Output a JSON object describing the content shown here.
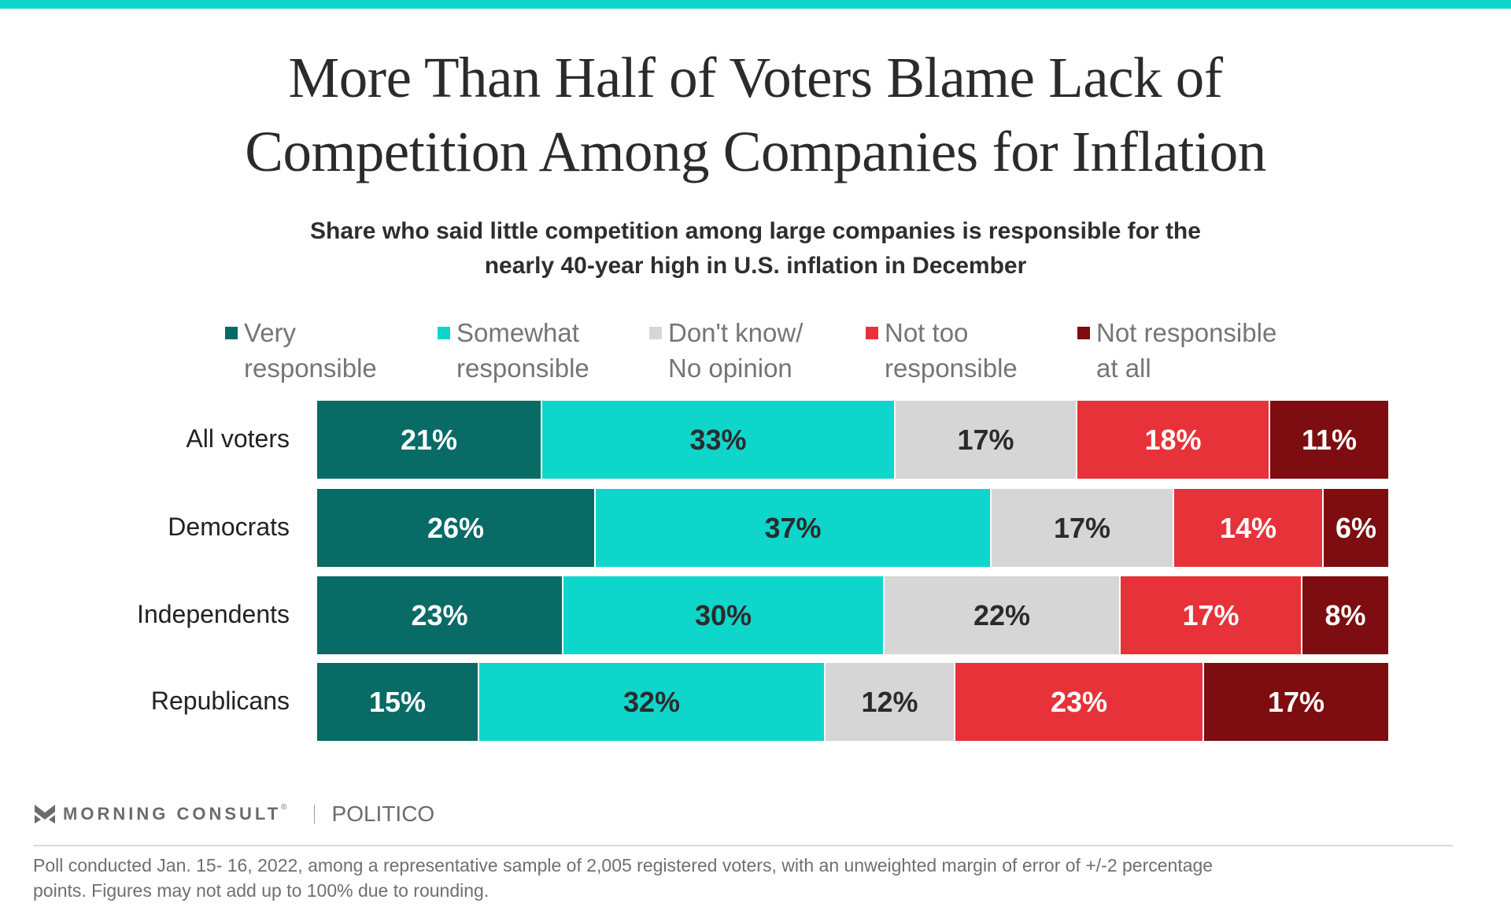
{
  "header": {
    "accent_color": "#0fd6cb",
    "title_line1": "More Than Half of Voters Blame Lack of",
    "title_line2": "Competition Among Companies for Inflation",
    "subtitle_line1": "Share who said little competition among large companies is responsible for the",
    "subtitle_line2": "nearly 40-year high in U.S. inflation in December"
  },
  "chart_data": {
    "type": "bar",
    "orientation": "horizontal",
    "stacked": true,
    "title": "More Than Half of Voters Blame Lack of Competition Among Companies for Inflation",
    "subtitle": "Share who said little competition among large companies is responsible for the nearly 40-year high in U.S. inflation in December",
    "xlabel": "",
    "ylabel": "",
    "xlim": [
      0,
      100
    ],
    "grid": false,
    "legend_position": "top",
    "categories": [
      "All voters",
      "Democrats",
      "Independents",
      "Republicans"
    ],
    "series": [
      {
        "name": "Very responsible",
        "legend_line1": "Very",
        "legend_line2": "responsible",
        "color": "#086b66",
        "label_color": "#ffffff",
        "values": [
          21,
          26,
          23,
          15
        ],
        "labels": [
          "21%",
          "26%",
          "23%",
          "15%"
        ]
      },
      {
        "name": "Somewhat responsible",
        "legend_line1": "Somewhat",
        "legend_line2": "responsible",
        "color": "#0fd6cb",
        "label_color": "#2b2b2b",
        "values": [
          33,
          37,
          30,
          32
        ],
        "labels": [
          "33%",
          "37%",
          "30%",
          "32%"
        ]
      },
      {
        "name": "Don't know/ No opinion",
        "legend_line1": "Don't know/",
        "legend_line2": "No opinion",
        "color": "#d6d6d6",
        "label_color": "#2b2b2b",
        "values": [
          17,
          17,
          22,
          12
        ],
        "labels": [
          "17%",
          "17%",
          "22%",
          "12%"
        ]
      },
      {
        "name": "Not too responsible",
        "legend_line1": "Not too",
        "legend_line2": "responsible",
        "color": "#e8323a",
        "label_color": "#ffffff",
        "values": [
          18,
          14,
          17,
          23
        ],
        "labels": [
          "18%",
          "14%",
          "17%",
          "23%"
        ]
      },
      {
        "name": "Not responsible at all",
        "legend_line1": "Not responsible",
        "legend_line2": "at all",
        "color": "#7d0d10",
        "label_color": "#ffffff",
        "values": [
          11,
          6,
          8,
          17
        ],
        "labels": [
          "11%",
          "6%",
          "8%",
          "17%"
        ]
      }
    ]
  },
  "footer": {
    "brand1": "MORNING CONSULT",
    "brand1_mark": "®",
    "brand2": "POLITICO",
    "note_line1": "Poll conducted Jan. 15- 16, 2022, among a representative sample of 2,005 registered voters, with an unweighted margin of error of +/-2 percentage",
    "note_line2": "points. Figures may not add up to 100% due to rounding."
  }
}
